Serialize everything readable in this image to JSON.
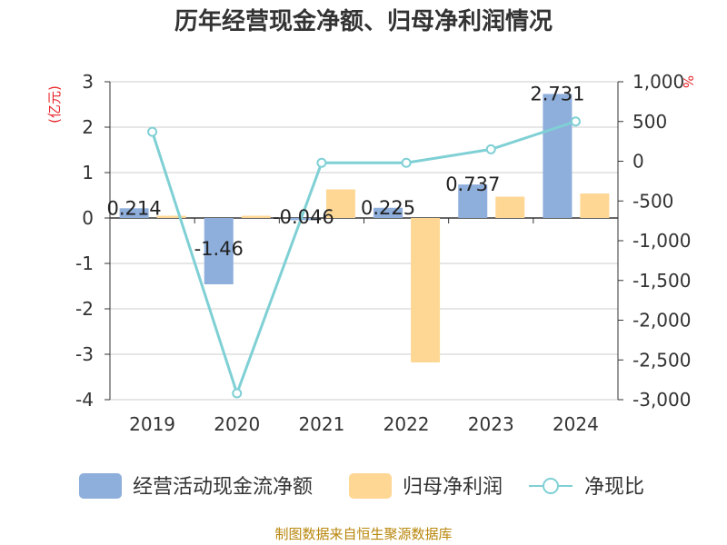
{
  "chart_data": {
    "type": "bar",
    "title": "历年经营现金净额、归母净利润情况",
    "categories": [
      "2019",
      "2020",
      "2021",
      "2022",
      "2023",
      "2024"
    ],
    "left_axis": {
      "unit": "(亿元)",
      "ylim": [
        -4,
        3
      ],
      "ticks": [
        "3",
        "2",
        "1",
        "0",
        "-1",
        "-2",
        "-3",
        "-4"
      ],
      "tick_values": [
        3,
        2,
        1,
        0,
        -1,
        -2,
        -3,
        -4
      ]
    },
    "right_axis": {
      "unit": "%",
      "ylim": [
        -3000,
        1000
      ],
      "ticks": [
        "1,000",
        "500",
        "0",
        "-500",
        "-1,000",
        "-1,500",
        "-2,000",
        "-2,500",
        "-3,000"
      ],
      "tick_values": [
        1000,
        500,
        0,
        -500,
        -1000,
        -1500,
        -2000,
        -2500,
        -3000
      ]
    },
    "series": [
      {
        "name": "经营活动现金流净额",
        "type": "bar",
        "axis": "left",
        "color": "#8eaedb",
        "values": [
          0.214,
          -1.46,
          -0.046,
          0.225,
          0.737,
          2.731
        ],
        "labels": [
          "0.214",
          "-1.46",
          "-0.046",
          "0.225",
          "0.737",
          "2.731"
        ]
      },
      {
        "name": "归母净利润",
        "type": "bar",
        "axis": "left",
        "color": "#ffd795",
        "values": [
          0.05,
          0.05,
          0.63,
          -3.18,
          0.47,
          0.54
        ]
      },
      {
        "name": "净现比",
        "type": "line",
        "axis": "right",
        "color": "#7fd0d5",
        "values": [
          370,
          -2920,
          -20,
          -20,
          150,
          500
        ]
      }
    ],
    "grid": true,
    "legend_position": "bottom"
  },
  "legend": {
    "item1": "经营活动现金流净额",
    "item2": "归母净利润",
    "item3": "净现比"
  },
  "source": "制图数据来自恒生聚源数据库"
}
